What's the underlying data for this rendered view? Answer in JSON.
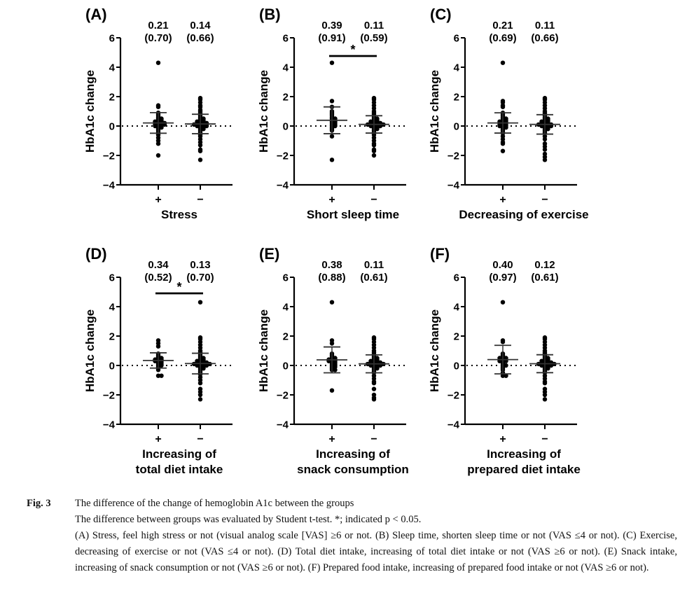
{
  "figure": {
    "ylabel": "HbA1c change",
    "yticks": [
      6,
      4,
      2,
      0,
      -2,
      -4
    ],
    "ylim": [
      -4,
      6
    ],
    "group_labels": [
      "+",
      "−"
    ],
    "significance_symbol": "*"
  },
  "chart_data": [
    {
      "type": "scatter",
      "panel": "(A)",
      "xlabel": [
        "Stress"
      ],
      "ylabel": "HbA1c change",
      "ylim": [
        -4,
        6
      ],
      "categories": [
        "+",
        "−"
      ],
      "series": [
        {
          "name": "+",
          "mean": 0.21,
          "sd": 0.7,
          "mean_label": "0.21",
          "sd_label": "(0.70)",
          "points": [
            4.3,
            1.4,
            1.3,
            0.9,
            0.8,
            0.7,
            0.6,
            0.5,
            0.5,
            0.4,
            0.4,
            0.3,
            0.3,
            0.3,
            0.2,
            0.2,
            0.2,
            0.2,
            0.1,
            0.1,
            0.1,
            0.1,
            0.0,
            0.0,
            0.0,
            -0.1,
            -0.1,
            -0.2,
            -0.3,
            -0.4,
            -0.5,
            -0.6,
            -0.8,
            -1.0,
            -1.2,
            -2.0
          ]
        },
        {
          "name": "−",
          "mean": 0.14,
          "sd": 0.66,
          "mean_label": "0.14",
          "sd_label": "(0.66)",
          "points": [
            1.9,
            1.8,
            1.6,
            1.4,
            1.3,
            1.1,
            1.0,
            0.9,
            0.8,
            0.7,
            0.6,
            0.5,
            0.5,
            0.4,
            0.4,
            0.3,
            0.3,
            0.3,
            0.2,
            0.2,
            0.2,
            0.2,
            0.1,
            0.1,
            0.1,
            0.1,
            0.1,
            0.0,
            0.0,
            0.0,
            0.0,
            -0.1,
            -0.1,
            -0.2,
            -0.2,
            -0.3,
            -0.4,
            -0.5,
            -0.6,
            -0.7,
            -0.9,
            -1.1,
            -1.3,
            -1.6,
            -1.7,
            -2.3
          ]
        }
      ],
      "significant": false
    },
    {
      "type": "scatter",
      "panel": "(B)",
      "xlabel": [
        "Short sleep time"
      ],
      "ylabel": "HbA1c change",
      "ylim": [
        -4,
        6
      ],
      "categories": [
        "+",
        "−"
      ],
      "series": [
        {
          "name": "+",
          "mean": 0.39,
          "sd": 0.91,
          "mean_label": "0.39",
          "sd_label": "(0.91)",
          "points": [
            4.3,
            1.7,
            1.3,
            1.0,
            0.9,
            0.8,
            0.7,
            0.6,
            0.5,
            0.5,
            0.4,
            0.4,
            0.3,
            0.3,
            0.2,
            0.2,
            0.1,
            0.1,
            0.0,
            0.0,
            -0.1,
            -0.2,
            -0.3,
            -0.7,
            -2.3
          ]
        },
        {
          "name": "−",
          "mean": 0.11,
          "sd": 0.59,
          "mean_label": "0.11",
          "sd_label": "(0.59)",
          "points": [
            1.9,
            1.8,
            1.6,
            1.4,
            1.2,
            1.0,
            0.9,
            0.8,
            0.7,
            0.6,
            0.5,
            0.5,
            0.4,
            0.4,
            0.3,
            0.3,
            0.3,
            0.2,
            0.2,
            0.2,
            0.2,
            0.1,
            0.1,
            0.1,
            0.1,
            0.1,
            0.1,
            0.0,
            0.0,
            0.0,
            0.0,
            -0.1,
            -0.1,
            -0.2,
            -0.2,
            -0.3,
            -0.4,
            -0.5,
            -0.6,
            -0.8,
            -1.0,
            -1.2,
            -1.3,
            -1.6,
            -1.7,
            -2.0
          ]
        }
      ],
      "significant": true
    },
    {
      "type": "scatter",
      "panel": "(C)",
      "xlabel": [
        "Decreasing of exercise"
      ],
      "ylabel": "HbA1c change",
      "ylim": [
        -4,
        6
      ],
      "categories": [
        "+",
        "−"
      ],
      "series": [
        {
          "name": "+",
          "mean": 0.21,
          "sd": 0.69,
          "mean_label": "0.21",
          "sd_label": "(0.69)",
          "points": [
            4.3,
            1.7,
            1.6,
            1.4,
            1.3,
            0.9,
            0.8,
            0.7,
            0.6,
            0.5,
            0.5,
            0.4,
            0.4,
            0.3,
            0.3,
            0.3,
            0.2,
            0.2,
            0.2,
            0.1,
            0.1,
            0.1,
            0.0,
            0.0,
            0.0,
            -0.1,
            -0.1,
            -0.2,
            -0.3,
            -0.4,
            -0.5,
            -0.7,
            -0.9,
            -1.1,
            -1.2,
            -1.7
          ]
        },
        {
          "name": "−",
          "mean": 0.11,
          "sd": 0.66,
          "mean_label": "0.11",
          "sd_label": "(0.66)",
          "points": [
            1.9,
            1.8,
            1.6,
            1.4,
            1.2,
            1.0,
            0.9,
            0.8,
            0.7,
            0.6,
            0.5,
            0.5,
            0.4,
            0.4,
            0.3,
            0.3,
            0.3,
            0.2,
            0.2,
            0.2,
            0.1,
            0.1,
            0.1,
            0.1,
            0.1,
            0.0,
            0.0,
            0.0,
            0.0,
            -0.1,
            -0.1,
            -0.2,
            -0.2,
            -0.3,
            -0.4,
            -0.5,
            -0.7,
            -0.9,
            -1.2,
            -1.4,
            -1.6,
            -1.9,
            -2.1,
            -2.3
          ]
        }
      ],
      "significant": false
    },
    {
      "type": "scatter",
      "panel": "(D)",
      "xlabel": [
        "Increasing of",
        "total diet intake"
      ],
      "ylabel": "HbA1c change",
      "ylim": [
        -4,
        6
      ],
      "categories": [
        "+",
        "−"
      ],
      "series": [
        {
          "name": "+",
          "mean": 0.34,
          "sd": 0.52,
          "mean_label": "0.34",
          "sd_label": "(0.52)",
          "points": [
            1.7,
            1.5,
            1.3,
            0.8,
            0.7,
            0.6,
            0.5,
            0.5,
            0.4,
            0.4,
            0.4,
            0.3,
            0.3,
            0.3,
            0.2,
            0.2,
            0.1,
            0.1,
            0.0,
            0.0,
            -0.1,
            -0.2,
            -0.3,
            -0.7,
            -0.7
          ]
        },
        {
          "name": "−",
          "mean": 0.13,
          "sd": 0.7,
          "mean_label": "0.13",
          "sd_label": "(0.70)",
          "points": [
            4.3,
            1.9,
            1.8,
            1.6,
            1.4,
            1.2,
            1.0,
            0.9,
            0.8,
            0.7,
            0.6,
            0.5,
            0.5,
            0.4,
            0.4,
            0.3,
            0.3,
            0.3,
            0.2,
            0.2,
            0.2,
            0.2,
            0.1,
            0.1,
            0.1,
            0.1,
            0.1,
            0.1,
            0.0,
            0.0,
            0.0,
            0.0,
            -0.1,
            -0.1,
            -0.2,
            -0.2,
            -0.3,
            -0.4,
            -0.5,
            -0.6,
            -0.8,
            -1.0,
            -1.2,
            -1.6,
            -1.8,
            -2.0,
            -2.3
          ]
        }
      ],
      "significant": true
    },
    {
      "type": "scatter",
      "panel": "(E)",
      "xlabel": [
        "Increasing of",
        "snack consumption"
      ],
      "ylabel": "HbA1c change",
      "ylim": [
        -4,
        6
      ],
      "categories": [
        "+",
        "−"
      ],
      "series": [
        {
          "name": "+",
          "mean": 0.38,
          "sd": 0.88,
          "mean_label": "0.38",
          "sd_label": "(0.88)",
          "points": [
            4.3,
            1.7,
            1.5,
            0.8,
            0.7,
            0.6,
            0.5,
            0.5,
            0.4,
            0.4,
            0.4,
            0.3,
            0.3,
            0.3,
            0.2,
            0.2,
            0.1,
            0.1,
            0.0,
            0.0,
            -0.1,
            -0.1,
            -0.2,
            -0.3,
            -0.3,
            -1.7
          ]
        },
        {
          "name": "−",
          "mean": 0.11,
          "sd": 0.61,
          "mean_label": "0.11",
          "sd_label": "(0.61)",
          "points": [
            1.9,
            1.8,
            1.6,
            1.4,
            1.2,
            1.0,
            0.9,
            0.8,
            0.7,
            0.6,
            0.5,
            0.5,
            0.4,
            0.4,
            0.3,
            0.3,
            0.3,
            0.2,
            0.2,
            0.2,
            0.2,
            0.1,
            0.1,
            0.1,
            0.1,
            0.1,
            0.1,
            0.0,
            0.0,
            0.0,
            0.0,
            -0.1,
            -0.1,
            -0.2,
            -0.2,
            -0.3,
            -0.4,
            -0.5,
            -0.7,
            -0.9,
            -1.1,
            -1.2,
            -1.6,
            -2.0,
            -2.2,
            -2.3
          ]
        }
      ],
      "significant": false
    },
    {
      "type": "scatter",
      "panel": "(F)",
      "xlabel": [
        "Increasing of",
        "prepared diet intake"
      ],
      "ylabel": "HbA1c change",
      "ylim": [
        -4,
        6
      ],
      "categories": [
        "+",
        "−"
      ],
      "series": [
        {
          "name": "+",
          "mean": 0.4,
          "sd": 0.97,
          "mean_label": "0.40",
          "sd_label": "(0.97)",
          "points": [
            4.3,
            1.7,
            1.6,
            0.8,
            0.7,
            0.6,
            0.5,
            0.5,
            0.5,
            0.4,
            0.3,
            0.3,
            0.3,
            0.2,
            0.1,
            0.0,
            0.0,
            -0.1,
            -0.2,
            -0.3,
            -0.5,
            -0.7,
            -0.7
          ]
        },
        {
          "name": "−",
          "mean": 0.12,
          "sd": 0.61,
          "mean_label": "0.12",
          "sd_label": "(0.61)",
          "points": [
            1.9,
            1.8,
            1.6,
            1.4,
            1.2,
            1.0,
            0.9,
            0.8,
            0.7,
            0.6,
            0.5,
            0.5,
            0.4,
            0.4,
            0.3,
            0.3,
            0.3,
            0.2,
            0.2,
            0.2,
            0.2,
            0.1,
            0.1,
            0.1,
            0.1,
            0.1,
            0.1,
            0.0,
            0.0,
            0.0,
            0.0,
            -0.1,
            -0.1,
            -0.2,
            -0.2,
            -0.3,
            -0.4,
            -0.5,
            -0.7,
            -0.9,
            -1.1,
            -1.2,
            -1.6,
            -1.8,
            -2.0,
            -2.3
          ]
        }
      ],
      "significant": false
    }
  ],
  "caption": {
    "fig_label": "Fig. 3",
    "title": "The difference of the change of hemoglobin A1c between the groups",
    "paragraphs": [
      "The difference between groups was evaluated by Student t-test. *; indicated p < 0.05.",
      "(A) Stress, feel high stress or not (visual analog scale [VAS] ≥6 or not. (B) Sleep time, shorten sleep time or not (VAS ≤4 or not). (C) Exercise, decreasing of exercise or not (VAS ≤4 or not). (D) Total diet intake, increasing of total diet intake or not (VAS ≥6 or not). (E) Snack intake, increasing of snack consumption or not (VAS ≥6 or not). (F) Prepared food intake, increasing of prepared food intake or not (VAS ≥6 or not)."
    ]
  }
}
